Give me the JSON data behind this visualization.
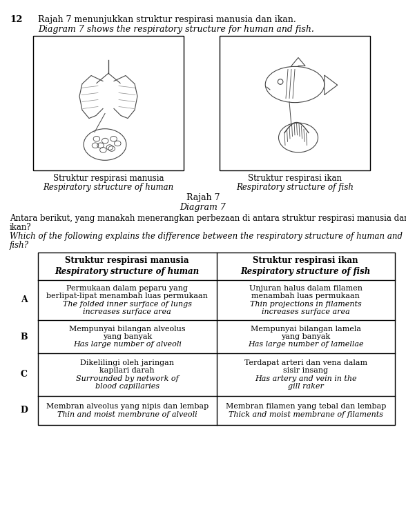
{
  "question_number": "12",
  "title_malay": "Rajah 7 menunjukkan struktur respirasi manusia dan ikan.",
  "title_english": "Diagram 7 shows the respiratory structure for human and fish.",
  "diagram_label_malay": "Rajah 7",
  "diagram_label_english": "Diagram 7",
  "caption_human_malay": "Struktur respirasi manusia",
  "caption_human_english": "Respiratory structure of human",
  "caption_fish_malay": "Struktur respirasi ikan",
  "caption_fish_english": "Respiratory structure of fish",
  "question_malay_1": "Antara berikut, yang manakah menerangkan perbezaan di antara struktur respirasi manusia dan",
  "question_malay_2": "ikan?",
  "question_english_1": "Which of the following explains the difference between the respiratory structure of human and",
  "question_english_2": "fish?",
  "table_header_col1_malay": "Struktur respirasi manusia",
  "table_header_col1_english": "Respiratory structure of human",
  "table_header_col2_malay": "Struktur respirasi ikan",
  "table_header_col2_english": "Respiratory structure of fish",
  "rows": [
    {
      "label": "A",
      "col1_lines": [
        "Permukaan dalam peparu yang",
        "berlipat-lipat menambah luas permukaan"
      ],
      "col1_italic": [
        "The folded inner surface of lungs",
        "increases surface area"
      ],
      "col2_lines": [
        "Unjuran halus dalam filamen",
        "menambah luas permukaan"
      ],
      "col2_italic": [
        "Thin projections in filaments",
        "increases surface area"
      ]
    },
    {
      "label": "B",
      "col1_lines": [
        "Mempunyai bilangan alveolus",
        "yang banyak"
      ],
      "col1_italic": [
        "Has large number of alveoli"
      ],
      "col2_lines": [
        "Mempunyai bilangan lamela",
        "yang banyak"
      ],
      "col2_italic": [
        "Has large number of lamellae"
      ]
    },
    {
      "label": "C",
      "col1_lines": [
        "Dikelilingi oleh jaringan",
        "kapilari darah"
      ],
      "col1_italic": [
        "Surrounded by network of",
        "blood capillaries"
      ],
      "col2_lines": [
        "Terdapat arteri dan vena dalam",
        "sisir insang"
      ],
      "col2_italic": [
        "Has artery and vein in the",
        "gill raker"
      ]
    },
    {
      "label": "D",
      "col1_lines": [
        "Membran alveolus yang nipis dan lembap"
      ],
      "col1_italic": [
        "Thin and moist membrane of alveoli"
      ],
      "col2_lines": [
        "Membran filamen yang tebal dan lembap"
      ],
      "col2_italic": [
        "Thick and moist membrane of filaments"
      ]
    }
  ],
  "bg_color": "#ffffff",
  "text_color": "#000000",
  "img_color": "#555555"
}
